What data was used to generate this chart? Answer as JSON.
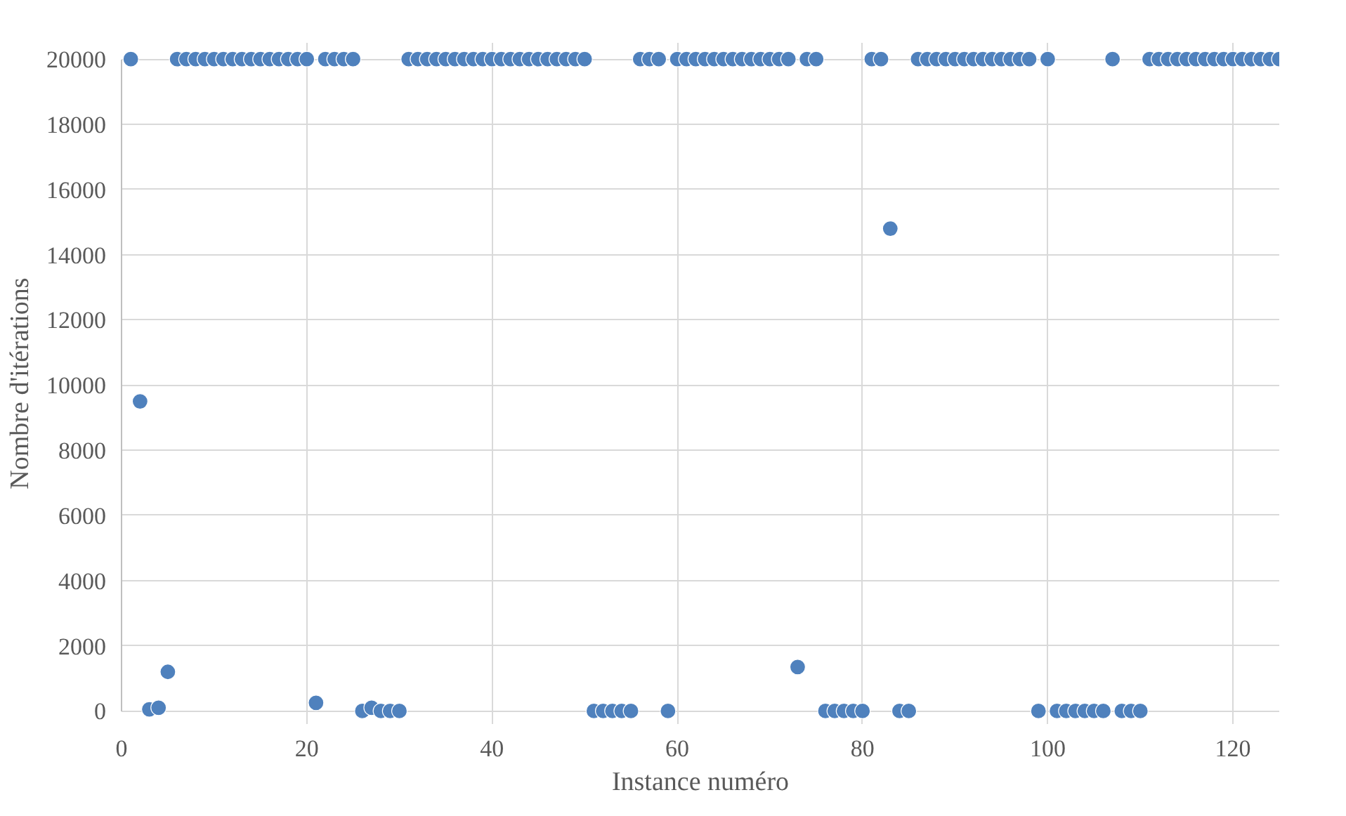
{
  "chart_data": {
    "type": "scatter",
    "xlabel": "Instance numéro",
    "ylabel": "Nombre d'itérations",
    "x": [
      1,
      2,
      3,
      4,
      5,
      6,
      7,
      8,
      9,
      10,
      11,
      12,
      13,
      14,
      15,
      16,
      17,
      18,
      19,
      20,
      21,
      22,
      23,
      24,
      25,
      26,
      27,
      28,
      29,
      30,
      31,
      32,
      33,
      34,
      35,
      36,
      37,
      38,
      39,
      40,
      41,
      42,
      43,
      44,
      45,
      46,
      47,
      48,
      49,
      50,
      51,
      52,
      53,
      54,
      55,
      56,
      57,
      58,
      59,
      60,
      61,
      62,
      63,
      64,
      65,
      66,
      67,
      68,
      69,
      70,
      71,
      72,
      73,
      74,
      75,
      76,
      77,
      78,
      79,
      80,
      81,
      82,
      83,
      84,
      85,
      86,
      87,
      88,
      89,
      90,
      91,
      92,
      93,
      94,
      95,
      96,
      97,
      98,
      99,
      100,
      101,
      102,
      103,
      104,
      105,
      106,
      107,
      108,
      109,
      110,
      111,
      112,
      113,
      114,
      115,
      116,
      117,
      118,
      119,
      120,
      121,
      122,
      123,
      124,
      125
    ],
    "series": [
      {
        "color": "#4f81bd",
        "values": [
          20000,
          9500,
          50,
          100,
          1200,
          20000,
          20000,
          20000,
          20000,
          20000,
          20000,
          20000,
          20000,
          20000,
          20000,
          20000,
          20000,
          20000,
          20000,
          20000,
          250,
          20000,
          20000,
          20000,
          20000,
          0,
          100,
          0,
          0,
          0,
          20000,
          20000,
          20000,
          20000,
          20000,
          20000,
          20000,
          20000,
          20000,
          20000,
          20000,
          20000,
          20000,
          20000,
          20000,
          20000,
          20000,
          20000,
          20000,
          20000,
          0,
          0,
          0,
          0,
          0,
          20000,
          20000,
          20000,
          0,
          20000,
          20000,
          20000,
          20000,
          20000,
          20000,
          20000,
          20000,
          20000,
          20000,
          20000,
          20000,
          20000,
          1350,
          20000,
          20000,
          0,
          0,
          0,
          0,
          0,
          20000,
          20000,
          14800,
          0,
          0,
          20000,
          20000,
          20000,
          20000,
          20000,
          20000,
          20000,
          20000,
          20000,
          20000,
          20000,
          20000,
          20000,
          0,
          20000,
          0,
          0,
          0,
          0,
          0,
          0,
          20000,
          0,
          0,
          0,
          20000,
          20000,
          20000,
          20000,
          20000,
          20000,
          20000,
          20000,
          20000,
          20000,
          20000,
          20000,
          20000,
          20000,
          20000
        ]
      }
    ],
    "xlim": [
      0,
      125
    ],
    "xticks": [
      0,
      20,
      40,
      60,
      80,
      100,
      120
    ],
    "ylim": [
      0,
      20000
    ],
    "yticks": [
      0,
      2000,
      4000,
      6000,
      8000,
      10000,
      12000,
      14000,
      16000,
      18000,
      20000
    ],
    "grid": true,
    "marker": "circle"
  }
}
